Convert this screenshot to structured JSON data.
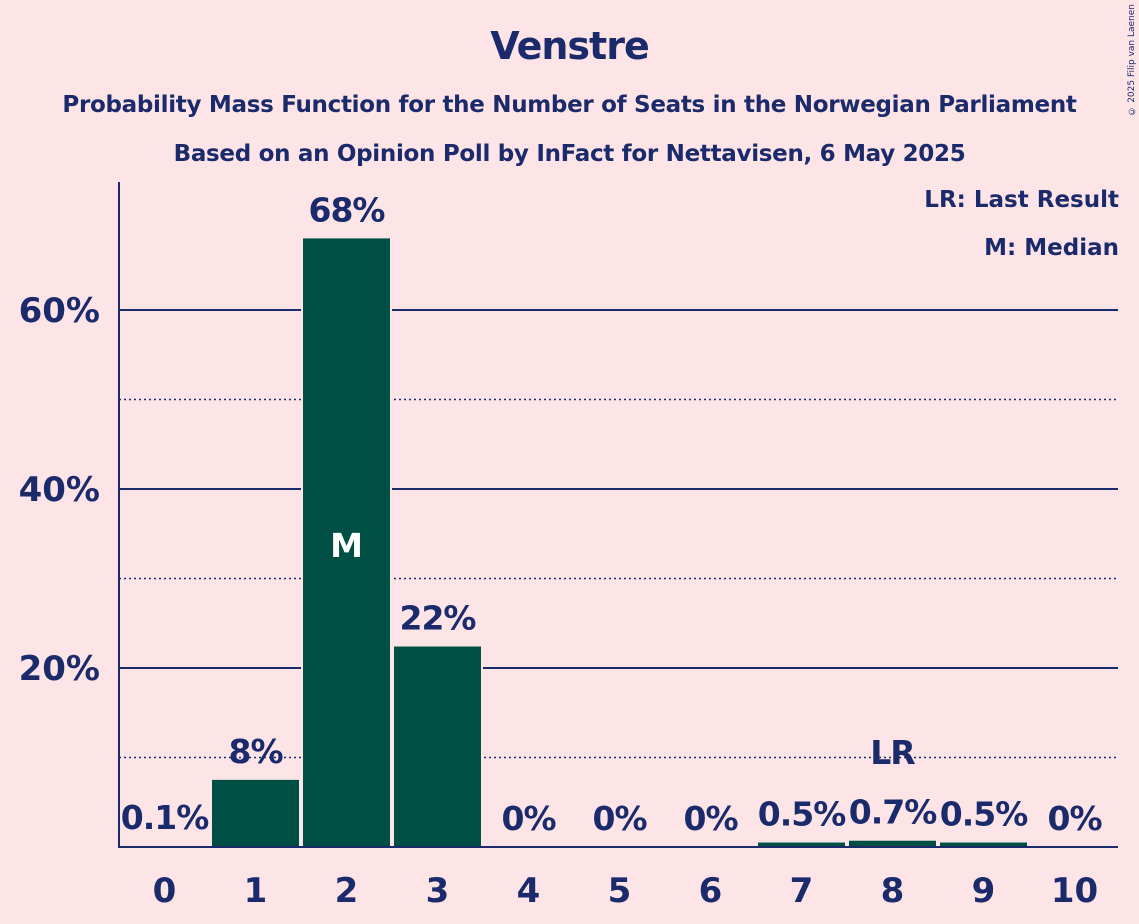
{
  "title": "Venstre",
  "subtitle_1": "Probability Mass Function for the Number of Seats in the Norwegian Parliament",
  "subtitle_2": "Based on an Opinion Poll by InFact for Nettavisen, 6 May 2025",
  "copyright": "© 2025 Filip van Laenen",
  "legend": {
    "last_result": "LR: Last Result",
    "median": "M: Median"
  },
  "colors": {
    "background": "#fde4e6",
    "bar": "#004f45",
    "text": "#1a2a6b",
    "grid": "#1a2a6b"
  },
  "chart_data": {
    "type": "bar",
    "categories": [
      "0",
      "1",
      "2",
      "3",
      "4",
      "5",
      "6",
      "7",
      "8",
      "9",
      "10"
    ],
    "values": [
      0.1,
      7.5,
      68,
      22.4,
      0,
      0,
      0,
      0.5,
      0.7,
      0.5,
      0
    ],
    "value_labels": [
      "0.1%",
      "8%",
      "68%",
      "22%",
      "0%",
      "0%",
      "0%",
      "0.5%",
      "0.7%",
      "0.5%",
      "0%"
    ],
    "y_ticks": [
      20,
      40,
      60
    ],
    "y_tick_labels": [
      "20%",
      "40%",
      "60%"
    ],
    "y_minor_ticks": [
      10,
      30,
      50
    ],
    "ylim": [
      0,
      75
    ],
    "median_category": "2",
    "median_marker": "M",
    "last_result_category": "8",
    "last_result_marker": "LR",
    "grid": true,
    "legend_position": "top-right"
  }
}
